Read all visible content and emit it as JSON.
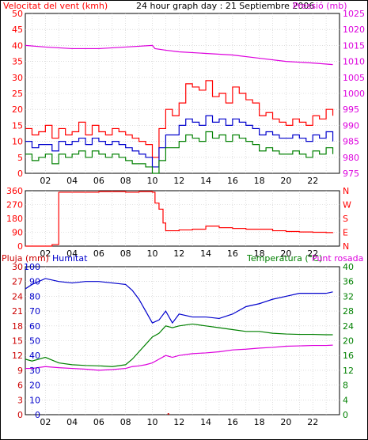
{
  "header": {
    "wind_label": "Velocitat del vent (kmh)",
    "title": "24 hour graph day : 21 Septiembre 2006",
    "pressure_label": "Pressió (mb)"
  },
  "panel3_header": {
    "rain_label": "Pluja (mm)",
    "humidity_label": "Humitat",
    "temp_label": "Temperatura (°C)",
    "dew_label": "Punt rosada"
  },
  "colors": {
    "wind_gust": "#ff0000",
    "wind_avg": "#0000cc",
    "wind_min": "#008000",
    "pressure": "#dd00dd",
    "direction": "#ff0000",
    "humidity": "#0000cc",
    "temperature": "#008000",
    "dewpoint": "#dd00dd",
    "rain": "#cc0000",
    "grid": "#c8c8c8"
  },
  "chart_data": [
    {
      "type": "line",
      "title": "24 hour graph day : 21 Septiembre 2006",
      "x_ticks": [
        "02",
        "04",
        "06",
        "08",
        "10",
        "12",
        "14",
        "16",
        "18",
        "20",
        "22"
      ],
      "x_range": [
        0.5,
        24
      ],
      "y_left_label": "Velocitat del vent (kmh)",
      "y_left_ticks": [
        "0",
        "5",
        "10",
        "15",
        "20",
        "25",
        "30",
        "35",
        "40",
        "45",
        "50"
      ],
      "y_left_range": [
        0,
        50
      ],
      "y_right_label": "Pressió (mb)",
      "y_right_ticks": [
        "975",
        "980",
        "985",
        "990",
        "995",
        "1000",
        "1005",
        "1010",
        "1015",
        "1020",
        "1025"
      ],
      "y_right_range": [
        975,
        1025
      ],
      "grid": true,
      "series": [
        {
          "key": "gust",
          "axis": "left",
          "x": [
            0.5,
            1,
            1.5,
            2,
            2.5,
            3,
            3.5,
            4,
            4.5,
            5,
            5.5,
            6,
            6.5,
            7,
            7.5,
            8,
            8.5,
            9,
            9.5,
            10,
            10.5,
            11,
            11.5,
            12,
            12.5,
            13,
            13.5,
            14,
            14.5,
            15,
            15.5,
            16,
            16.5,
            17,
            17.5,
            18,
            18.5,
            19,
            19.5,
            20,
            20.5,
            21,
            21.5,
            22,
            22.5,
            23,
            23.5
          ],
          "y": [
            14,
            12,
            13,
            15,
            11,
            14,
            12,
            13,
            16,
            12,
            15,
            13,
            12,
            14,
            13,
            12,
            11,
            10,
            9,
            5,
            14,
            20,
            18,
            22,
            28,
            27,
            26,
            29,
            24,
            25,
            22,
            27,
            25,
            23,
            22,
            18,
            19,
            17,
            16,
            15,
            17,
            16,
            15,
            18,
            17,
            20,
            18
          ]
        },
        {
          "key": "avg",
          "axis": "left",
          "x": [
            0.5,
            1,
            1.5,
            2,
            2.5,
            3,
            3.5,
            4,
            4.5,
            5,
            5.5,
            6,
            6.5,
            7,
            7.5,
            8,
            8.5,
            9,
            9.5,
            10,
            10.5,
            11,
            11.5,
            12,
            12.5,
            13,
            13.5,
            14,
            14.5,
            15,
            15.5,
            16,
            16.5,
            17,
            17.5,
            18,
            18.5,
            19,
            19.5,
            20,
            20.5,
            21,
            21.5,
            22,
            22.5,
            23,
            23.5
          ],
          "y": [
            10,
            8,
            9,
            9,
            7,
            10,
            9,
            10,
            11,
            9,
            11,
            10,
            9,
            10,
            9,
            8,
            7,
            6,
            5,
            2,
            8,
            12,
            12,
            15,
            17,
            16,
            15,
            18,
            16,
            17,
            15,
            17,
            16,
            15,
            14,
            12,
            13,
            12,
            11,
            11,
            12,
            11,
            10,
            12,
            11,
            13,
            10
          ]
        },
        {
          "key": "min",
          "axis": "left",
          "x": [
            0.5,
            1,
            1.5,
            2,
            2.5,
            3,
            3.5,
            4,
            4.5,
            5,
            5.5,
            6,
            6.5,
            7,
            7.5,
            8,
            8.5,
            9,
            9.5,
            10,
            10.5,
            11,
            11.5,
            12,
            12.5,
            13,
            13.5,
            14,
            14.5,
            15,
            15.5,
            16,
            16.5,
            17,
            17.5,
            18,
            18.5,
            19,
            19.5,
            20,
            20.5,
            21,
            21.5,
            22,
            22.5,
            23,
            23.5
          ],
          "y": [
            6,
            4,
            5,
            6,
            3,
            6,
            5,
            6,
            7,
            5,
            7,
            6,
            5,
            6,
            5,
            4,
            3,
            3,
            2,
            0,
            4,
            8,
            8,
            10,
            12,
            11,
            10,
            13,
            11,
            12,
            10,
            12,
            11,
            10,
            9,
            7,
            8,
            7,
            6,
            6,
            7,
            6,
            5,
            7,
            6,
            8,
            6
          ]
        },
        {
          "key": "pressure",
          "axis": "right",
          "x": [
            0.5,
            2,
            4,
            6,
            8,
            10,
            10.2,
            11,
            12,
            14,
            16,
            18,
            20,
            22,
            23.5
          ],
          "y": [
            1015,
            1014.5,
            1014,
            1014,
            1014.5,
            1015,
            1014,
            1013.5,
            1013,
            1012.5,
            1012,
            1011,
            1010,
            1009.5,
            1009
          ]
        }
      ]
    },
    {
      "type": "line",
      "x_ticks": [
        "02",
        "04",
        "06",
        "08",
        "10",
        "12",
        "14",
        "16",
        "18",
        "20",
        "22"
      ],
      "x_range": [
        0.5,
        24
      ],
      "y_left_ticks": [
        "0",
        "90",
        "180",
        "270",
        "360"
      ],
      "y_range": [
        0,
        360
      ],
      "y_right_ticks": [
        "N",
        "E",
        "S",
        "W",
        "N"
      ],
      "grid": true,
      "series": [
        {
          "key": "direction",
          "x": [
            0.5,
            2,
            2.5,
            3,
            4,
            6,
            8,
            9,
            10,
            10.2,
            10.5,
            10.8,
            11,
            12,
            13,
            14,
            15,
            16,
            17,
            18,
            19,
            20,
            21,
            22,
            23,
            23.5
          ],
          "y": [
            0,
            0,
            10,
            350,
            350,
            355,
            350,
            355,
            350,
            280,
            240,
            150,
            100,
            105,
            110,
            130,
            120,
            115,
            110,
            110,
            100,
            95,
            92,
            90,
            88,
            90
          ]
        }
      ]
    },
    {
      "type": "line",
      "x_ticks": [
        "02",
        "04",
        "06",
        "08",
        "10",
        "12",
        "14",
        "16",
        "18",
        "20",
        "22"
      ],
      "x_range": [
        0.5,
        24
      ],
      "y_left_label": "Pluja (mm)",
      "y_left_ticks": [
        "0",
        "3",
        "6",
        "9",
        "12",
        "15",
        "18",
        "21",
        "24",
        "27",
        "30"
      ],
      "y_left_range": [
        0,
        30
      ],
      "y_left2_label": "Humitat",
      "y_left2_ticks": [
        "0",
        "10",
        "20",
        "30",
        "40",
        "50",
        "60",
        "70",
        "80",
        "90",
        "100"
      ],
      "y_left2_range": [
        0,
        100
      ],
      "y_right_label": "Temperatura (°C)",
      "y_right_ticks": [
        "0",
        "4",
        "8",
        "12",
        "16",
        "20",
        "24",
        "28",
        "32",
        "36",
        "40"
      ],
      "y_right_range": [
        0,
        40
      ],
      "grid": true,
      "series": [
        {
          "key": "humidity",
          "axis": "left2",
          "x": [
            0.5,
            1,
            2,
            3,
            4,
            5,
            6,
            7,
            8,
            8.5,
            9,
            9.5,
            10,
            10.5,
            11,
            11.5,
            12,
            13,
            14,
            15,
            16,
            17,
            18,
            19,
            20,
            21,
            22,
            23,
            23.5
          ],
          "y": [
            85,
            88,
            92,
            90,
            89,
            90,
            90,
            89,
            88,
            84,
            78,
            70,
            62,
            64,
            70,
            62,
            68,
            66,
            66,
            65,
            68,
            73,
            75,
            78,
            80,
            82,
            82,
            82,
            83
          ]
        },
        {
          "key": "temperature",
          "axis": "right",
          "x": [
            0.5,
            1,
            2,
            3,
            4,
            5,
            6,
            7,
            8,
            8.5,
            9,
            9.5,
            10,
            10.5,
            11,
            11.5,
            12,
            13,
            14,
            15,
            16,
            17,
            18,
            19,
            20,
            21,
            22,
            23,
            23.5
          ],
          "y": [
            15,
            14.5,
            15.5,
            14,
            13.5,
            13.3,
            13.2,
            13,
            13.5,
            15,
            17,
            19,
            21,
            22,
            24,
            23.5,
            24,
            24.5,
            24,
            23.5,
            23,
            22.5,
            22.5,
            22,
            21.8,
            21.7,
            21.7,
            21.6,
            21.6
          ]
        },
        {
          "key": "dewpoint",
          "axis": "right",
          "x": [
            0.5,
            1,
            2,
            3,
            4,
            5,
            6,
            7,
            8,
            8.5,
            9,
            9.5,
            10,
            10.5,
            11,
            11.5,
            12,
            13,
            14,
            15,
            16,
            17,
            18,
            19,
            20,
            21,
            22,
            23,
            23.5
          ],
          "y": [
            12.5,
            12.5,
            13,
            12.7,
            12.5,
            12.3,
            12,
            12.2,
            12.5,
            13,
            13.2,
            13.5,
            14,
            15,
            16,
            15.5,
            16,
            16.5,
            16.7,
            17,
            17.5,
            17.7,
            18,
            18.2,
            18.5,
            18.6,
            18.7,
            18.7,
            18.8
          ]
        },
        {
          "key": "rain",
          "axis": "left",
          "x": [
            11.2,
            11.2
          ],
          "y": [
            0,
            0.3
          ]
        }
      ]
    }
  ]
}
